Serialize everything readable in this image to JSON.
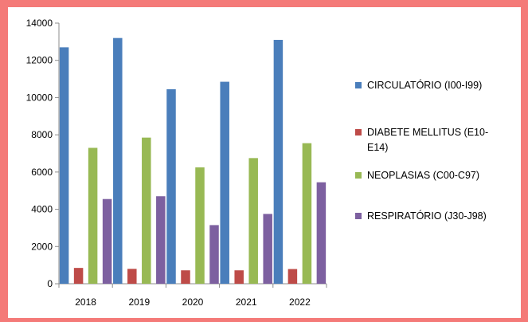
{
  "chart_data": {
    "type": "bar",
    "categories": [
      "2018",
      "2019",
      "2020",
      "2021",
      "2022"
    ],
    "ylim": [
      0,
      14000
    ],
    "yticks": [
      0,
      2000,
      4000,
      6000,
      8000,
      10000,
      12000,
      14000
    ],
    "grid": false,
    "legend_position": "right",
    "series": [
      {
        "name": "CIRCULATÓRIO (I00-I99)",
        "legend_lines": [
          "CIRCULATÓRIO (I00-I99)"
        ],
        "color": "#4a7ebb",
        "values": [
          12700,
          13200,
          10450,
          10850,
          13100
        ]
      },
      {
        "name": "DIABETE MELLITUS (E10-E14)",
        "legend_lines": [
          "DIABETE MELLITUS (E10-",
          "E14)"
        ],
        "color": "#be4b48",
        "values": [
          850,
          800,
          720,
          720,
          790
        ]
      },
      {
        "name": "NEOPLASIAS (C00-C97)",
        "legend_lines": [
          "NEOPLASIAS (C00-C97)"
        ],
        "color": "#98b954",
        "values": [
          7300,
          7850,
          6250,
          6750,
          7550
        ]
      },
      {
        "name": "RESPIRATÓRIO (J30-J98)",
        "legend_lines": [
          "RESPIRATÓRIO (J30-J98)"
        ],
        "color": "#7d60a0",
        "values": [
          4550,
          4700,
          3150,
          3750,
          5450
        ]
      }
    ]
  }
}
